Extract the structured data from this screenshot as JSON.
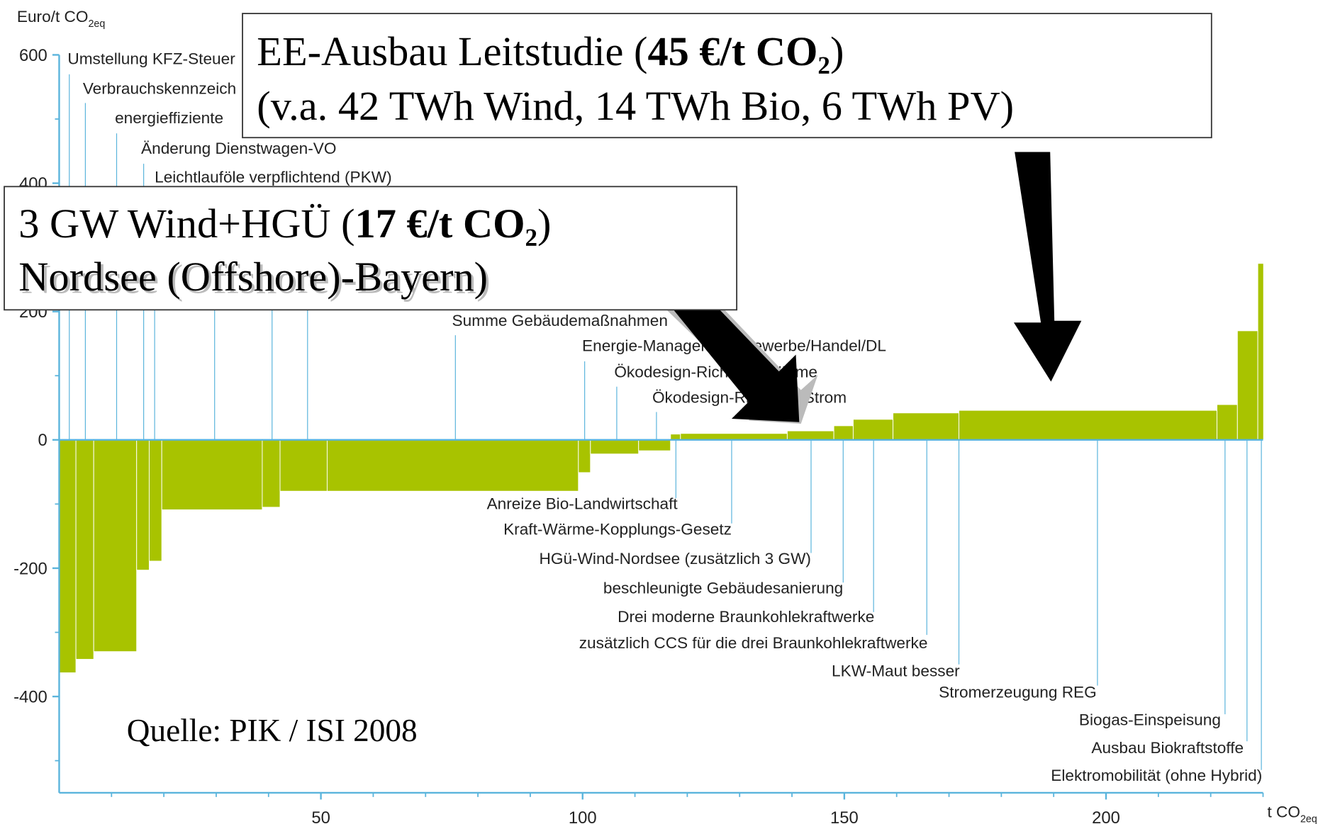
{
  "chart_data": {
    "type": "bar",
    "y_label": "Euro/t CO",
    "y_label_sub": "2eq",
    "x_label": "t CO",
    "x_label_sub": "2eq",
    "widths": [
      3.2,
      3.4,
      8.2,
      2.4,
      2.4,
      19.2,
      3.4,
      9.0,
      48.0,
      2.3,
      9.2,
      6.1,
      1.9,
      20.4,
      8.9,
      3.7,
      7.6,
      12.6,
      49.3,
      3.9,
      3.9,
      1.1
    ],
    "values": [
      -363,
      -342,
      -330,
      -203,
      -189,
      -109,
      -105,
      -80,
      -80,
      -51,
      -22,
      -17,
      9,
      10,
      14,
      22,
      32,
      42,
      46,
      55,
      170,
      275
    ],
    "color": "#a8c300",
    "axis_color": "#5ab4dc",
    "xlim": [
      0,
      230
    ],
    "ylim": [
      -550,
      600
    ],
    "xticks": [
      50,
      100,
      150,
      200
    ],
    "xticks_minor": [
      10,
      20,
      30,
      40,
      60,
      70,
      80,
      90,
      110,
      120,
      130,
      140,
      160,
      170,
      180,
      190,
      210,
      220,
      230
    ],
    "yticks": [
      -400,
      -200,
      0,
      200,
      400,
      600
    ],
    "yticks_minor": [
      -500,
      -300,
      -100,
      100,
      300,
      500
    ],
    "top_labels": [
      "Umstellung KFZ-Steuer",
      "Verbrauchskennzeich",
      "energieffiziente",
      "Änderung Dienstwagen-VO",
      "Leichtlauföle verpflichtend (PKW)",
      "Summe Gebäudemaßnahmen",
      "Energie-Management Gewerbe/Handel/DL",
      "Ökodesign-Richtlinie Wärme",
      "Ökodesign-Richtlinie Strom"
    ],
    "bottom_labels": [
      "Anreize Bio-Landwirtschaft",
      "Kraft-Wärme-Kopplungs-Gesetz",
      "HGü-Wind-Nordsee (zusätzlich 3 GW)",
      "beschleunigte Gebäudesanierung",
      "Drei moderne Braunkohlekraftwerke",
      "zusätzlich CCS für die drei Braunkohlekraftwerke",
      "LKW-Maut besser",
      "Stromerzeugung REG",
      "Biogas-Einspeisung",
      "Ausbau Biokraftstoffe",
      "Elektromobilität (ohne Hybrid)"
    ],
    "callout_ee": {
      "line1_pre": "EE-Ausbau Leitstudie (",
      "line1_bold": "45 €/t CO₂",
      "line1_post": ")",
      "line2": "(v.a. 42 TWh Wind, 14 TWh Bio, 6 TWh PV)"
    },
    "callout_wind": {
      "line1_pre": "3 GW Wind+HGÜ (",
      "line1_bold": "17 €/t CO₂",
      "line1_post": ")",
      "line2": "Nordsee (Offshore)-Bayern)"
    },
    "source": "Quelle: PIK / ISI 2008"
  }
}
